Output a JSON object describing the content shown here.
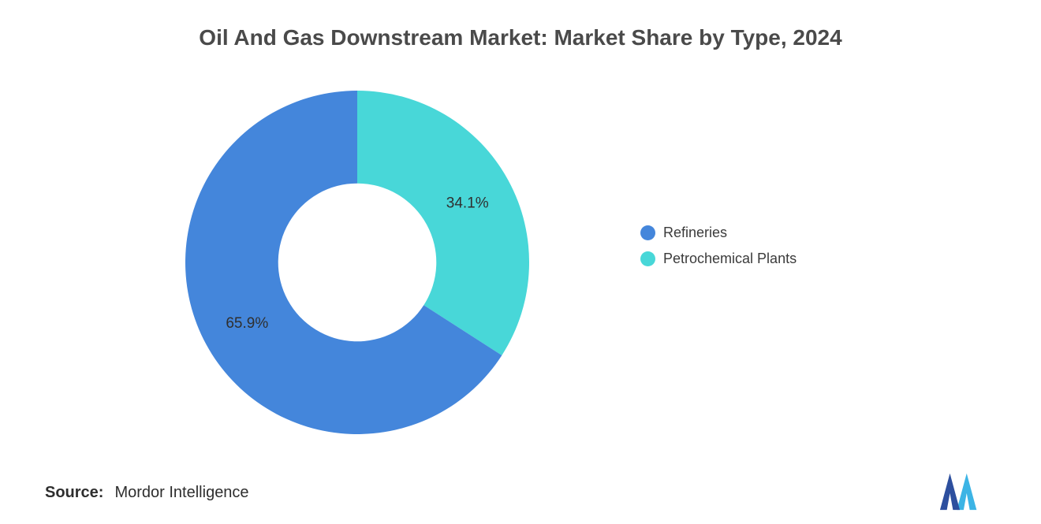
{
  "title": "Oil And Gas Downstream Market: Market Share by Type, 2024",
  "source": {
    "label": "Source:",
    "value": "Mordor Intelligence"
  },
  "legend": {
    "items": [
      {
        "label": "Refineries",
        "color": "#4486DB"
      },
      {
        "label": "Petrochemical Plants",
        "color": "#48D7D8"
      }
    ]
  },
  "chart_data": {
    "type": "pie",
    "donut": true,
    "title": "Oil And Gas Downstream Market: Market Share by Type, 2024",
    "categories": [
      "Refineries",
      "Petrochemical Plants"
    ],
    "values": [
      65.9,
      34.1
    ],
    "labels": [
      "65.9%",
      "34.1%"
    ],
    "colors": [
      "#4486DB",
      "#48D7D8"
    ],
    "unit": "%",
    "start_angle_deg": 0,
    "clockwise_order": [
      1,
      0
    ],
    "inner_radius_ratio": 0.46,
    "grid": false,
    "legend_position": "right"
  },
  "logo": {
    "alt": "Mordor Intelligence logo",
    "color_dark": "#2D4F9E",
    "color_light": "#3CB4E5"
  }
}
